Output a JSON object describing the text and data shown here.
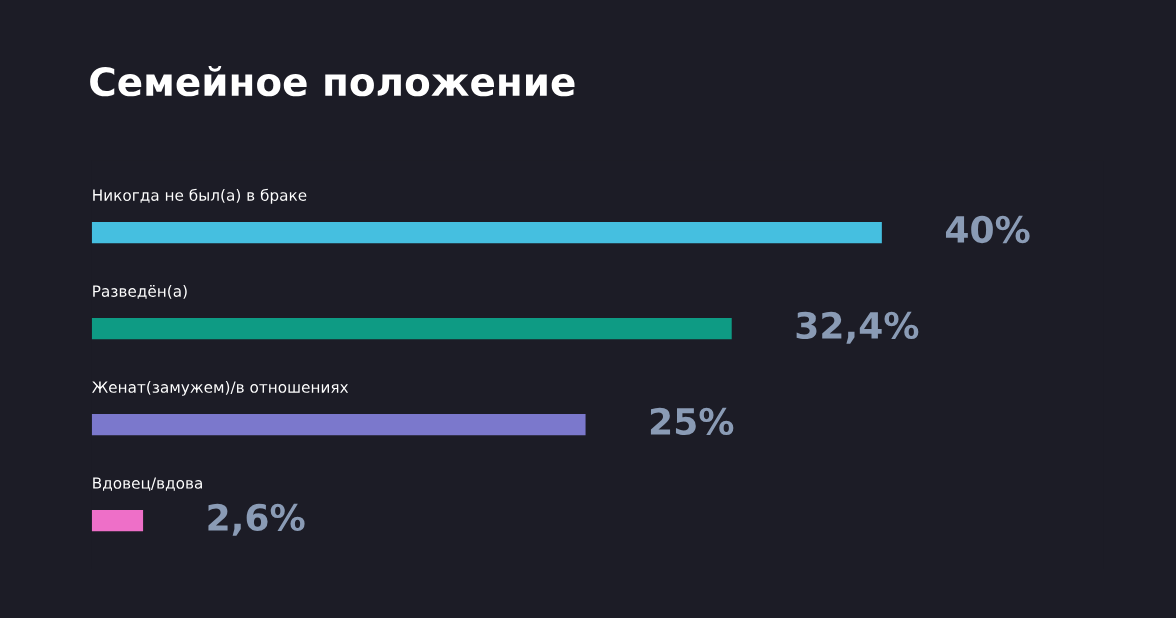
{
  "chart_data": {
    "type": "bar",
    "orientation": "horizontal",
    "title": "Семейное положение",
    "categories": [
      "Никогда не был(а) в браке",
      "Разведён(а)",
      "Женат(замужем)/в отношениях",
      "Вдовец/вдова"
    ],
    "values": [
      40,
      32.4,
      25,
      2.6
    ],
    "colors": [
      "#45bfe0",
      "#0e9b84",
      "#7b78cc",
      "#ee6fc8"
    ],
    "value_labels": [
      "40%",
      "32,4%",
      "25%",
      "2,6%"
    ],
    "tick_labels": false
  }
}
